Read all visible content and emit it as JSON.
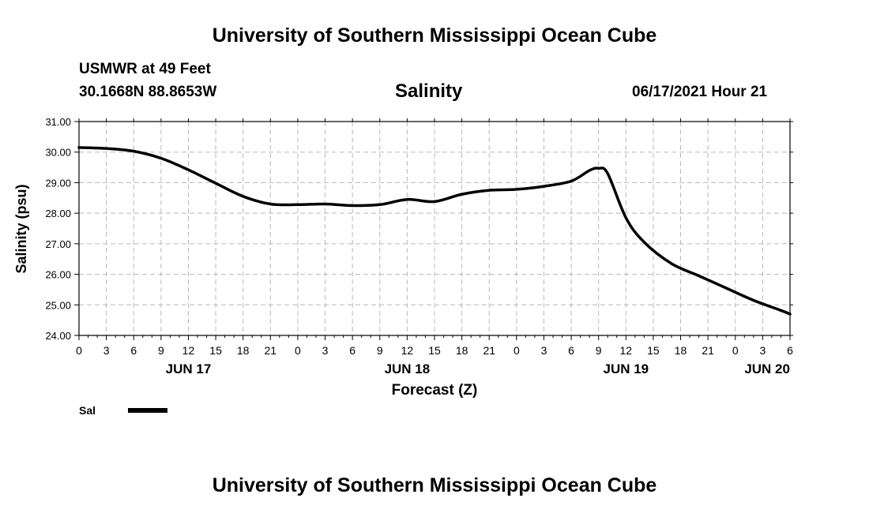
{
  "header": {
    "title_top": "University of Southern Mississippi Ocean Cube",
    "title_bottom": "University of Southern Mississippi Ocean Cube",
    "station": "USMWR at 49 Feet",
    "coords": "30.1668N  88.8653W",
    "variable": "Salinity",
    "datetime": "06/17/2021 Hour 21"
  },
  "legend": {
    "label": "Sal"
  },
  "chart_data": {
    "type": "line",
    "title": "Salinity",
    "xlabel": "Forecast (Z)",
    "ylabel": "Salinity (psu)",
    "ylim": [
      24,
      31
    ],
    "xlim": [
      0,
      78
    ],
    "grid": true,
    "yticks": [
      "24.00",
      "25.00",
      "26.00",
      "27.00",
      "28.00",
      "29.00",
      "30.00",
      "31.00"
    ],
    "xtick_labels": [
      "0",
      "3",
      "6",
      "9",
      "12",
      "15",
      "18",
      "21",
      "0",
      "3",
      "6",
      "9",
      "12",
      "15",
      "18",
      "21",
      "0",
      "3",
      "6",
      "9",
      "12",
      "15",
      "18",
      "21",
      "0",
      "3",
      "6"
    ],
    "date_labels": [
      {
        "label": "JUN 17",
        "hour": 12
      },
      {
        "label": "JUN 18",
        "hour": 36
      },
      {
        "label": "JUN 19",
        "hour": 60
      },
      {
        "label": "JUN 20",
        "hour": 75.5
      }
    ],
    "series": [
      {
        "name": "Sal",
        "x": [
          0,
          3,
          6,
          9,
          12,
          15,
          18,
          21,
          24,
          27,
          30,
          33,
          36,
          39,
          42,
          45,
          48,
          51,
          54,
          56,
          57,
          58,
          60,
          62,
          65,
          68,
          71,
          74,
          77,
          78
        ],
        "values": [
          30.15,
          30.12,
          30.03,
          29.8,
          29.42,
          28.98,
          28.55,
          28.3,
          28.28,
          28.3,
          28.25,
          28.28,
          28.45,
          28.38,
          28.62,
          28.75,
          28.78,
          28.88,
          29.05,
          29.4,
          29.47,
          29.3,
          27.85,
          27.05,
          26.35,
          25.95,
          25.55,
          25.15,
          24.82,
          24.7
        ]
      }
    ]
  }
}
